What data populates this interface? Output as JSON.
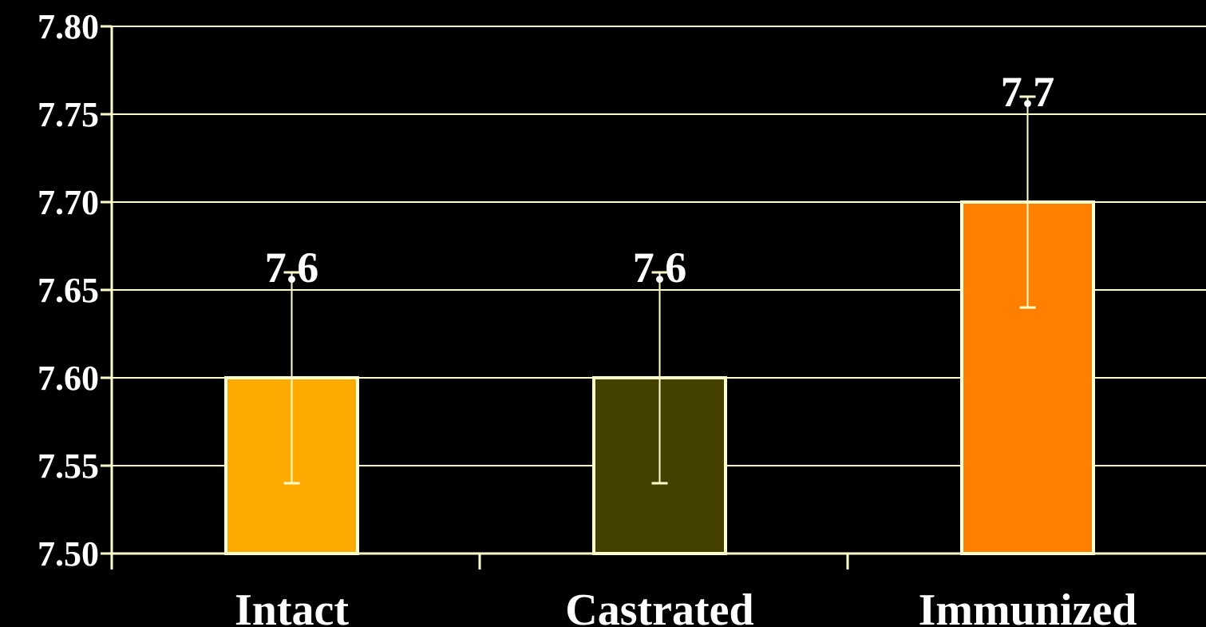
{
  "chart_data": {
    "type": "bar",
    "title": "",
    "xlabel": "",
    "ylabel": "",
    "categories": [
      "Intact",
      "Castrated",
      "Immunized"
    ],
    "values": [
      7.6,
      7.6,
      7.7
    ],
    "data_labels": [
      "7.6",
      "7.6",
      "7.7"
    ],
    "error_bars": [
      {
        "low": 7.54,
        "high": 7.66
      },
      {
        "low": 7.54,
        "high": 7.66
      },
      {
        "low": 7.64,
        "high": 7.76
      }
    ],
    "bar_colors": [
      "#FFAA00",
      "#444000",
      "#FF7F00"
    ],
    "ylim": [
      7.5,
      7.8
    ],
    "yticks": [
      "7.50",
      "7.55",
      "7.60",
      "7.65",
      "7.70",
      "7.75",
      "7.80"
    ],
    "grid": true,
    "legend": "none",
    "colors": {
      "background": "#000000",
      "axis": "#FFFFCC",
      "gridline": "#FFFFCC",
      "bar_outline": "#FFFFCC",
      "error_bar": "#FFFFCC",
      "text": "#FFFFFF"
    }
  }
}
